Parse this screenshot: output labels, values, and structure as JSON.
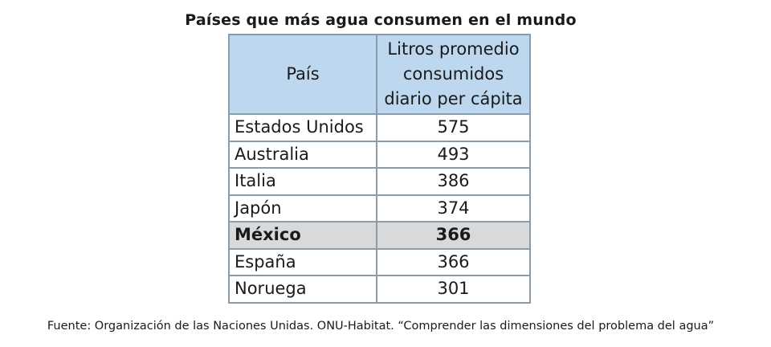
{
  "title": "Países que más agua consumen en el mundo",
  "headers": [
    "País",
    "Litros promedio consumidos diario per cápita"
  ],
  "rows": [
    {
      "country": "Estados Unidos",
      "liters": "575"
    },
    {
      "country": "Australia",
      "liters": "493"
    },
    {
      "country": "Italia",
      "liters": "386"
    },
    {
      "country": "Japón",
      "liters": "374"
    },
    {
      "country": "México",
      "liters": "366"
    },
    {
      "country": "España",
      "liters": "366"
    },
    {
      "country": "Noruega",
      "liters": "301"
    }
  ],
  "source": "Fuente: Organización de las Naciones Unidas. ONU-Habitat. “Comprender las dimensiones del problema del agua”",
  "colors": {
    "header_bg": "#bdd7ee",
    "highlight_bg": "#d9d9d9",
    "border": "#8c9ba8"
  }
}
